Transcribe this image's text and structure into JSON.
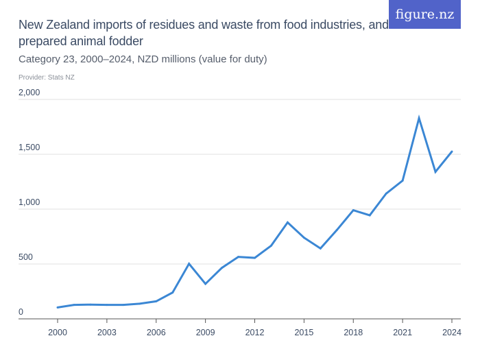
{
  "header": {
    "title": "New Zealand imports of residues and waste from food industries, and prepared animal fodder",
    "subtitle": "Category 23, 2000–2024, NZD millions (value for duty)",
    "provider": "Provider: Stats NZ",
    "logo": "figure.nz",
    "logo_color": "#5163c9"
  },
  "chart_data": {
    "type": "line",
    "title": "New Zealand imports of residues and waste from food industries, and prepared animal fodder",
    "subtitle": "Category 23, 2000–2024, NZD millions (value for duty)",
    "xlabel": "",
    "ylabel": "",
    "x": [
      2000,
      2001,
      2002,
      2003,
      2004,
      2005,
      2006,
      2007,
      2008,
      2009,
      2010,
      2011,
      2012,
      2013,
      2014,
      2015,
      2016,
      2017,
      2018,
      2019,
      2020,
      2021,
      2022,
      2023,
      2024
    ],
    "series": [
      {
        "values": [
          104,
          127,
          130,
          127,
          127,
          138,
          160,
          240,
          502,
          319,
          465,
          565,
          556,
          667,
          879,
          740,
          642,
          810,
          990,
          944,
          1142,
          1260,
          1829,
          1340,
          1525
        ],
        "color": "#3b87d4"
      }
    ],
    "xticks": [
      "2000",
      "2003",
      "2006",
      "2009",
      "2012",
      "2015",
      "2018",
      "2021",
      "2024"
    ],
    "yticks": [
      "0",
      "500",
      "1,000",
      "1,500",
      "2,000"
    ],
    "ylim": [
      0,
      2000
    ],
    "xlim": [
      2000,
      2024
    ],
    "grid": true
  }
}
